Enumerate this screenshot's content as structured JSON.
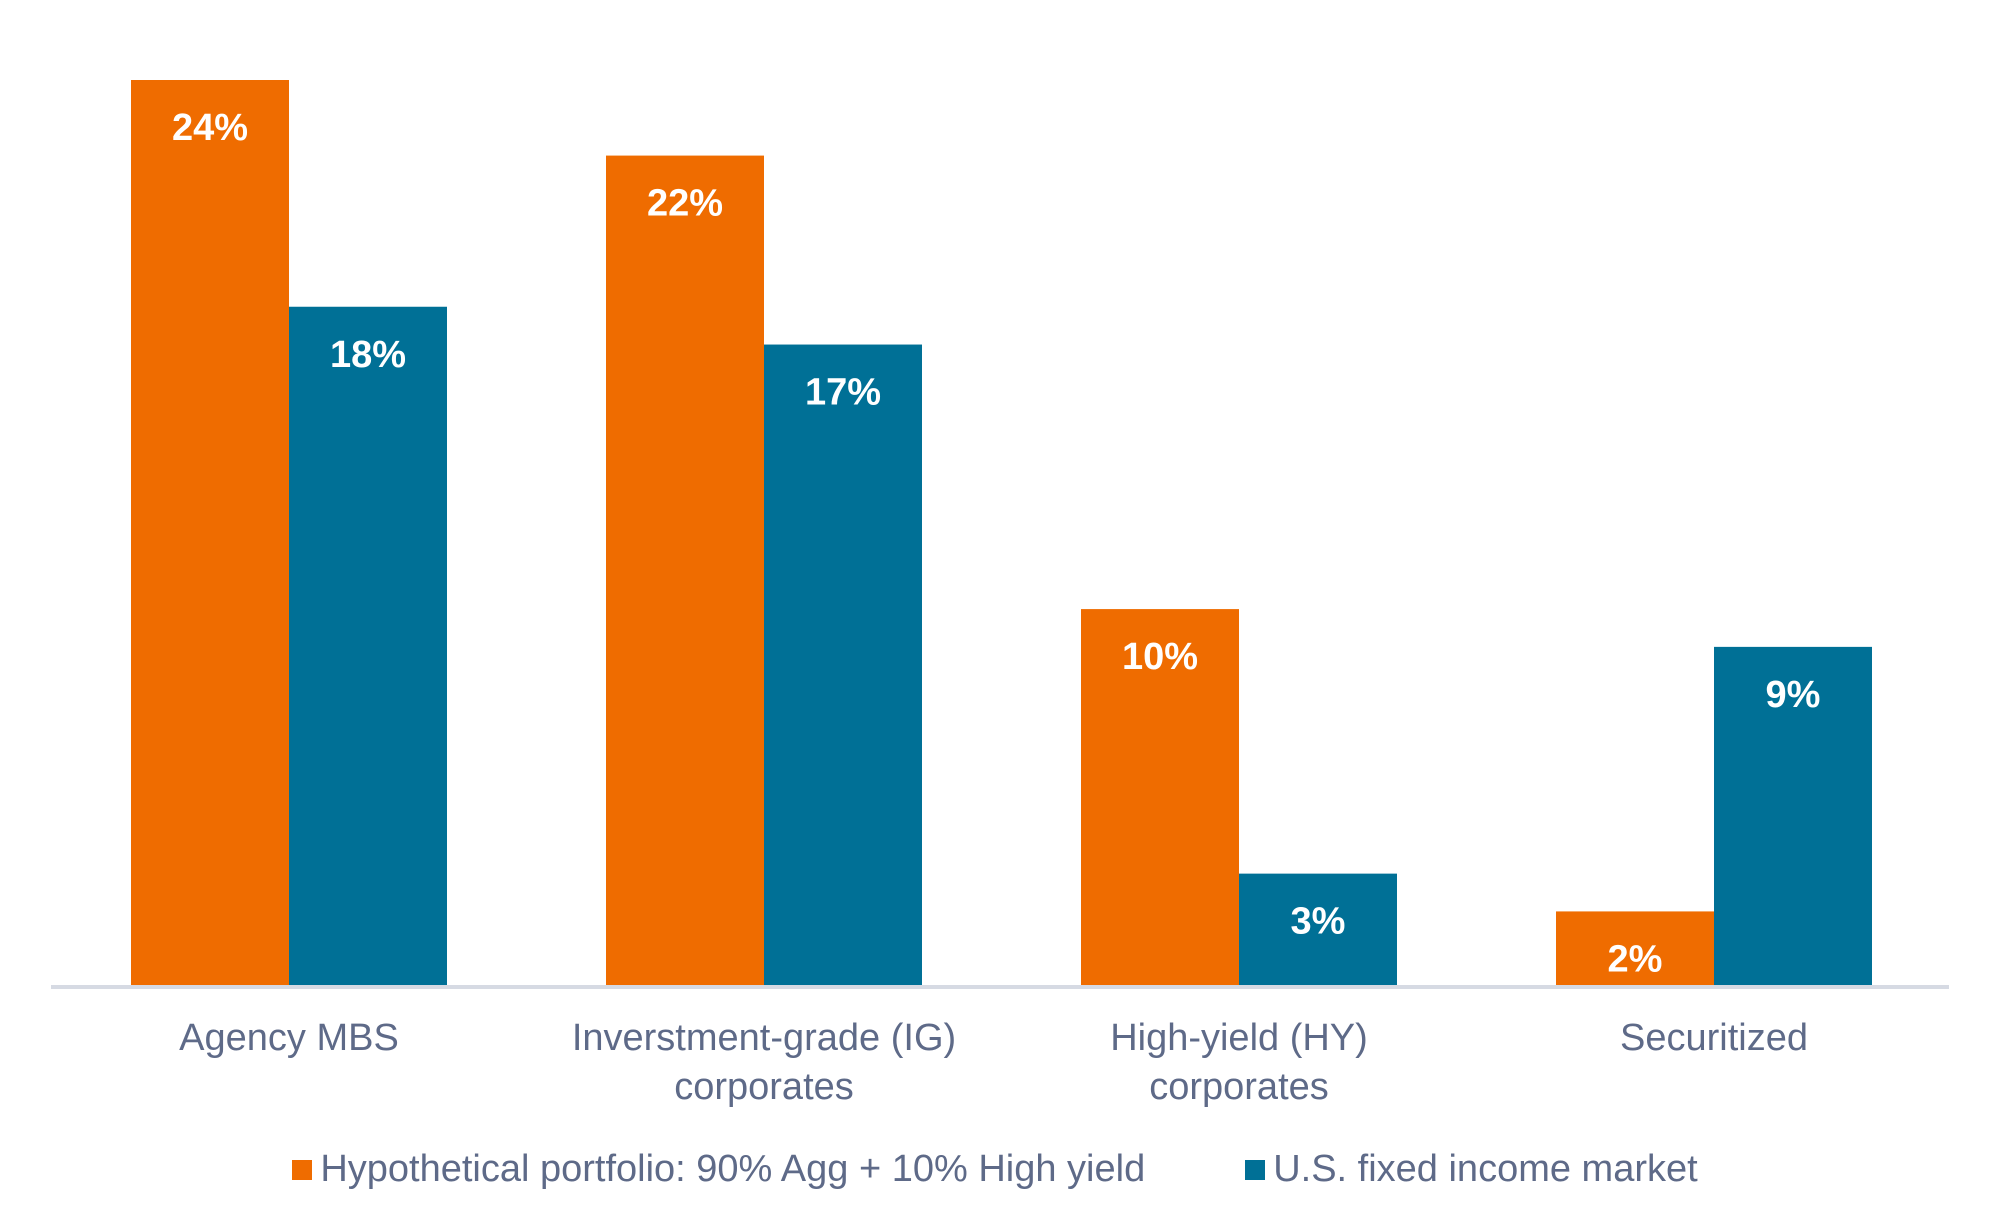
{
  "chart_data": {
    "type": "bar",
    "title": "",
    "xlabel": "",
    "ylabel": "",
    "ylim": [
      0,
      24
    ],
    "grid": false,
    "legend_position": "bottom",
    "categories": [
      [
        "Agency MBS"
      ],
      [
        "Inverstment-grade (IG)",
        "corporates"
      ],
      [
        "High-yield (HY)",
        "corporates"
      ],
      [
        "Securitized"
      ]
    ],
    "series": [
      {
        "name": "Hypothetical portfolio: 90% Agg + 10% High yield",
        "color": "#ef6c00",
        "values": [
          24,
          22,
          10,
          2
        ],
        "labels": [
          "24%",
          "22%",
          "10%",
          "2%"
        ]
      },
      {
        "name": "U.S. fixed income market",
        "color": "#007096",
        "values": [
          18,
          17,
          3,
          9
        ],
        "labels": [
          "18%",
          "17%",
          "3%",
          "9%"
        ]
      }
    ]
  }
}
